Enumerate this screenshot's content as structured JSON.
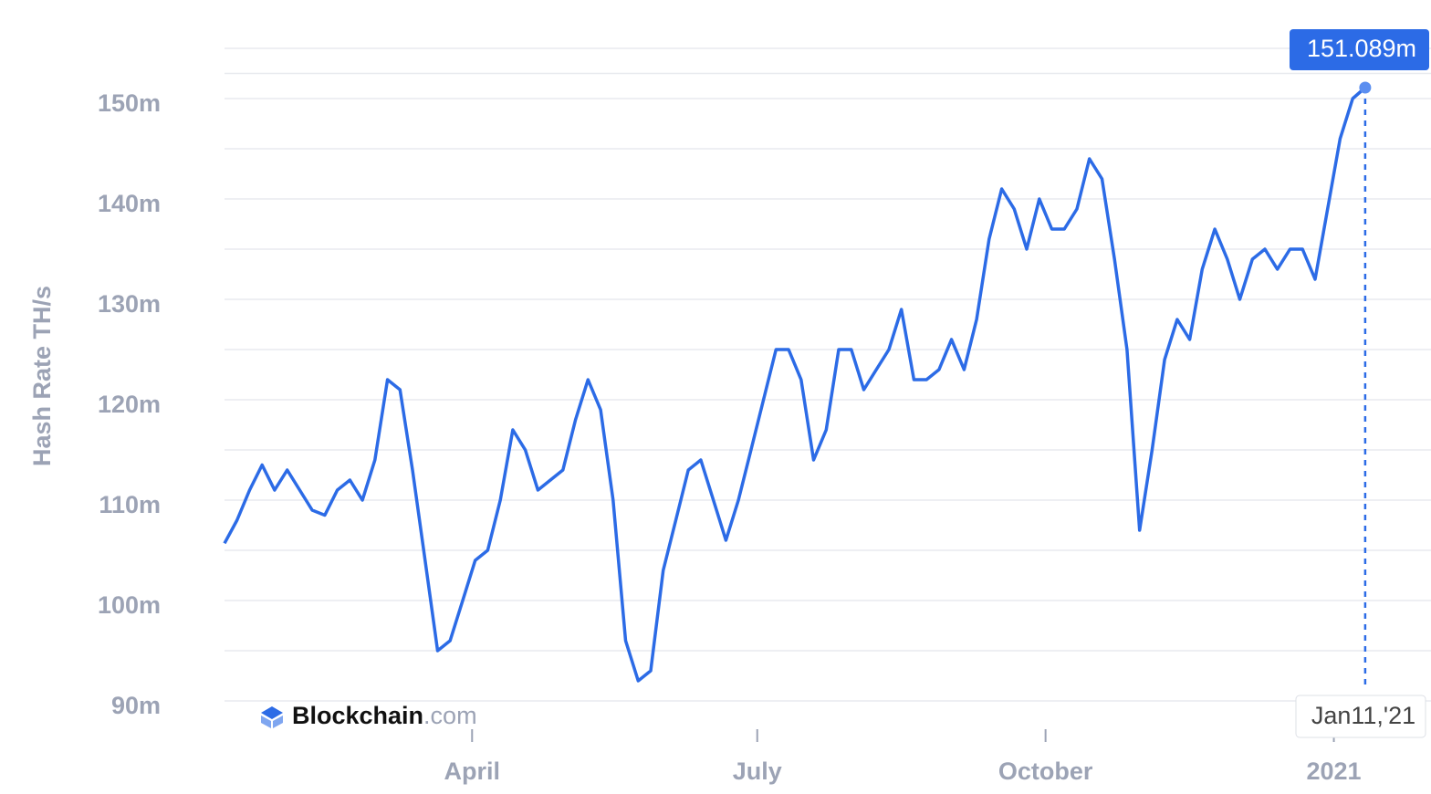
{
  "chart_data": {
    "type": "line",
    "y_label": "Hash Rate TH/s",
    "watermark": [
      "Blockchain",
      ".com"
    ],
    "tooltip_value_label": "151.089m",
    "tooltip_x_label": "Jan11,'21",
    "x": [
      "2020-01-13",
      "2020-01-17",
      "2020-01-21",
      "2020-01-25",
      "2020-01-29",
      "2020-02-02",
      "2020-02-06",
      "2020-02-10",
      "2020-02-14",
      "2020-02-18",
      "2020-02-22",
      "2020-02-26",
      "2020-03-01",
      "2020-03-05",
      "2020-03-09",
      "2020-03-13",
      "2020-03-17",
      "2020-03-21",
      "2020-03-25",
      "2020-03-29",
      "2020-04-02",
      "2020-04-06",
      "2020-04-10",
      "2020-04-14",
      "2020-04-18",
      "2020-04-22",
      "2020-04-26",
      "2020-04-30",
      "2020-05-04",
      "2020-05-08",
      "2020-05-12",
      "2020-05-16",
      "2020-05-20",
      "2020-05-24",
      "2020-05-28",
      "2020-06-01",
      "2020-06-05",
      "2020-06-09",
      "2020-06-13",
      "2020-06-17",
      "2020-06-21",
      "2020-06-25",
      "2020-06-29",
      "2020-07-03",
      "2020-07-07",
      "2020-07-11",
      "2020-07-15",
      "2020-07-19",
      "2020-07-23",
      "2020-07-27",
      "2020-07-31",
      "2020-08-04",
      "2020-08-08",
      "2020-08-12",
      "2020-08-16",
      "2020-08-20",
      "2020-08-24",
      "2020-08-28",
      "2020-09-01",
      "2020-09-05",
      "2020-09-09",
      "2020-09-13",
      "2020-09-17",
      "2020-09-21",
      "2020-09-25",
      "2020-09-29",
      "2020-10-03",
      "2020-10-07",
      "2020-10-11",
      "2020-10-15",
      "2020-10-19",
      "2020-10-23",
      "2020-10-27",
      "2020-10-31",
      "2020-11-04",
      "2020-11-08",
      "2020-11-12",
      "2020-11-16",
      "2020-11-20",
      "2020-11-24",
      "2020-11-28",
      "2020-12-02",
      "2020-12-06",
      "2020-12-10",
      "2020-12-14",
      "2020-12-18",
      "2020-12-22",
      "2020-12-26",
      "2020-12-30",
      "2021-01-03",
      "2021-01-07",
      "2021-01-11"
    ],
    "series": [
      {
        "name": "Hash Rate",
        "color": "#2c6be6",
        "values": [
          105.7,
          108,
          111,
          113.5,
          111,
          113,
          111,
          109,
          108.5,
          111,
          112,
          110,
          114,
          122,
          121,
          113,
          104,
          95,
          96,
          100,
          104,
          105,
          110,
          117,
          115,
          111,
          112,
          113,
          118,
          122,
          119,
          110,
          96,
          92,
          93,
          103,
          108,
          113,
          114,
          110,
          106,
          110,
          115,
          120,
          125,
          125,
          122,
          114,
          117,
          125,
          125,
          121,
          123,
          125,
          129,
          122,
          122,
          123,
          126,
          123,
          128,
          136,
          141,
          139,
          135,
          140,
          137,
          137,
          139,
          144,
          142,
          134,
          125,
          107,
          115,
          124,
          128,
          126,
          133,
          137,
          134,
          130,
          134,
          135,
          133,
          135,
          135,
          132,
          139,
          146,
          150,
          151.089
        ]
      }
    ],
    "xlim": [
      "2020-01-13",
      "2021-02-01"
    ],
    "xticks": [
      {
        "value": "2020-04-01",
        "label": "April"
      },
      {
        "value": "2020-07-01",
        "label": "July"
      },
      {
        "value": "2020-10-01",
        "label": "October"
      },
      {
        "value": "2021-01-01",
        "label": "2021"
      }
    ],
    "ylim": [
      90,
      155
    ],
    "yticks": [
      {
        "value": 90,
        "label": "90m"
      },
      {
        "value": 100,
        "label": "100m"
      },
      {
        "value": 110,
        "label": "110m"
      },
      {
        "value": 120,
        "label": "120m"
      },
      {
        "value": 130,
        "label": "130m"
      },
      {
        "value": 140,
        "label": "140m"
      },
      {
        "value": 150,
        "label": "150m"
      }
    ],
    "grid": true
  }
}
